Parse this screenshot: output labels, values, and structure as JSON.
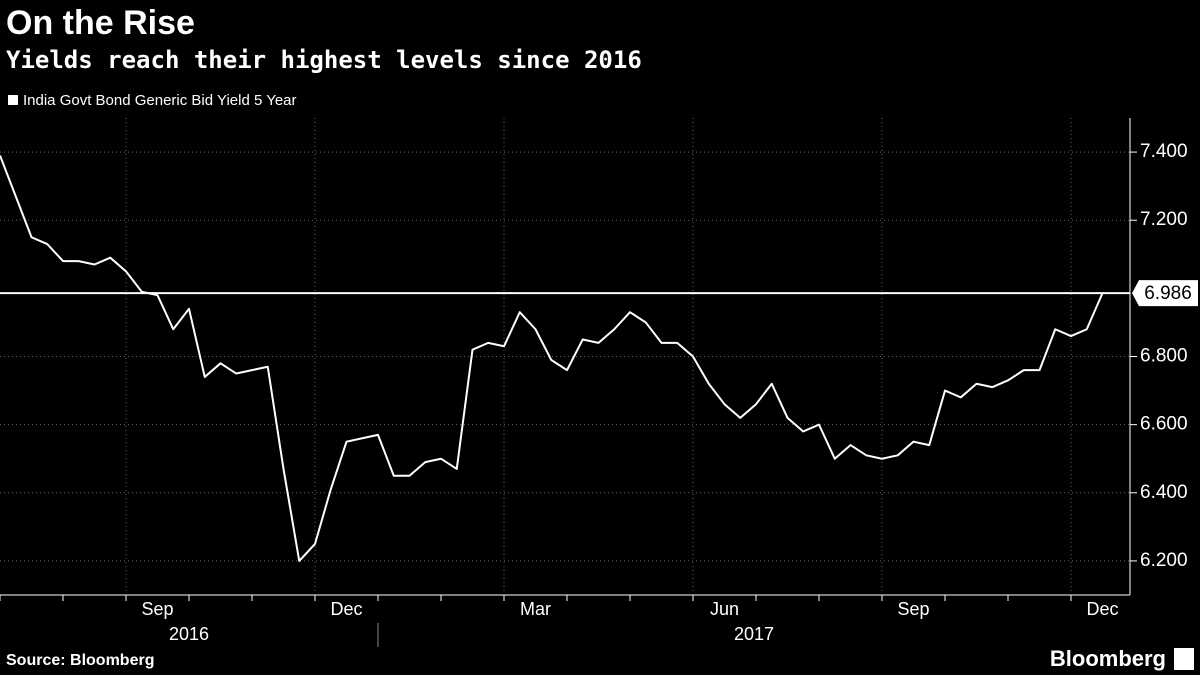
{
  "chart_data": {
    "type": "line",
    "title": "On the Rise",
    "subtitle": "Yields reach their highest levels since 2016",
    "source": "Source: Bloomberg",
    "brand": "Bloomberg",
    "categories": [
      null,
      null,
      null,
      null,
      null,
      null,
      null,
      null,
      null,
      null,
      "Sep",
      null,
      null,
      null,
      null,
      null,
      null,
      null,
      null,
      null,
      null,
      null,
      "Dec",
      null,
      null,
      null,
      null,
      null,
      null,
      null,
      null,
      null,
      null,
      null,
      "Mar",
      null,
      null,
      null,
      null,
      null,
      null,
      null,
      null,
      null,
      null,
      null,
      "Jun",
      null,
      null,
      null,
      null,
      null,
      null,
      null,
      null,
      null,
      null,
      null,
      "Sep",
      null,
      null,
      null,
      null,
      null,
      null,
      null,
      null,
      null,
      null,
      null,
      "Dec"
    ],
    "x_groups": [
      "2016",
      "2017"
    ],
    "series": [
      {
        "name": "India Govt Bond Generic Bid Yield 5 Year",
        "color": "#ffffff",
        "values": [
          7.39,
          7.27,
          7.15,
          7.13,
          7.08,
          7.08,
          7.07,
          7.09,
          7.05,
          6.99,
          6.98,
          6.88,
          6.94,
          6.74,
          6.78,
          6.75,
          6.76,
          6.77,
          6.47,
          6.2,
          6.25,
          6.41,
          6.55,
          6.56,
          6.57,
          6.45,
          6.45,
          6.49,
          6.5,
          6.47,
          6.82,
          6.84,
          6.83,
          6.93,
          6.88,
          6.79,
          6.76,
          6.85,
          6.84,
          6.88,
          6.93,
          6.9,
          6.84,
          6.84,
          6.8,
          6.72,
          6.66,
          6.62,
          6.66,
          6.72,
          6.62,
          6.58,
          6.6,
          6.5,
          6.54,
          6.51,
          6.5,
          6.51,
          6.55,
          6.54,
          6.7,
          6.68,
          6.72,
          6.71,
          6.73,
          6.76,
          6.76,
          6.88,
          6.86,
          6.88,
          6.986
        ]
      }
    ],
    "ylim": [
      6.1,
      7.5
    ],
    "yticks": [
      {
        "value": 6.2,
        "label": "6.200"
      },
      {
        "value": 6.4,
        "label": "6.400"
      },
      {
        "value": 6.6,
        "label": "6.600"
      },
      {
        "value": 6.8,
        "label": "6.800"
      },
      {
        "value": 7.2,
        "label": "7.200"
      },
      {
        "value": 7.4,
        "label": "7.400"
      }
    ],
    "grid": true
  }
}
